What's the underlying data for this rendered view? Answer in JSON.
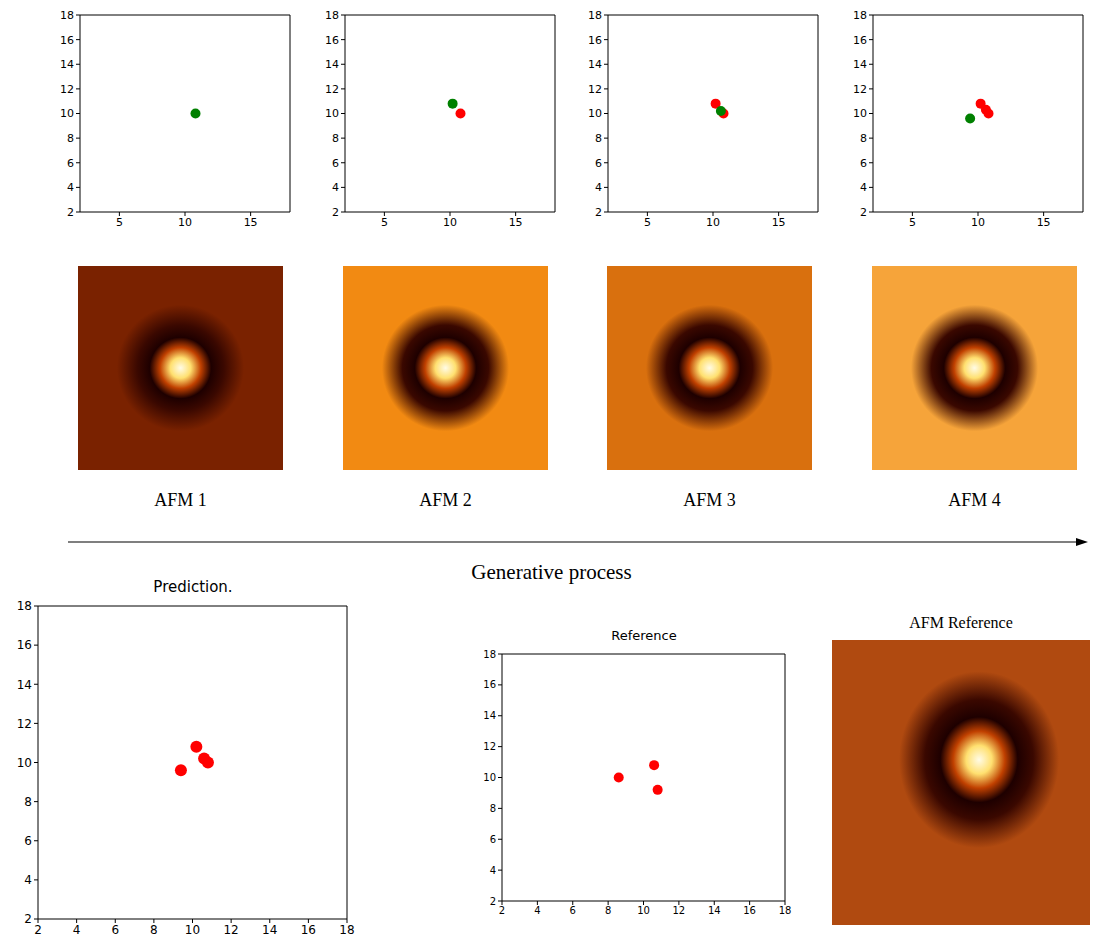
{
  "chart_data": [
    {
      "type": "scatter",
      "xlim": [
        2,
        18
      ],
      "ylim": [
        2,
        18
      ],
      "xticks": [
        5,
        10,
        15
      ],
      "yticks": [
        2,
        4,
        6,
        8,
        10,
        12,
        14,
        16,
        18
      ],
      "series": [
        {
          "color": "green",
          "x": [
            10.8
          ],
          "values": [
            10.0
          ]
        }
      ]
    },
    {
      "type": "scatter",
      "xlim": [
        2,
        18
      ],
      "ylim": [
        2,
        18
      ],
      "xticks": [
        5,
        10,
        15
      ],
      "yticks": [
        2,
        4,
        6,
        8,
        10,
        12,
        14,
        16,
        18
      ],
      "series": [
        {
          "color": "red",
          "x": [
            10.8
          ],
          "values": [
            10.0
          ]
        },
        {
          "color": "green",
          "x": [
            10.2
          ],
          "values": [
            10.8
          ]
        }
      ]
    },
    {
      "type": "scatter",
      "xlim": [
        2,
        18
      ],
      "ylim": [
        2,
        18
      ],
      "xticks": [
        5,
        10,
        15
      ],
      "yticks": [
        2,
        4,
        6,
        8,
        10,
        12,
        14,
        16,
        18
      ],
      "series": [
        {
          "color": "red",
          "x": [
            10.8,
            10.2
          ],
          "values": [
            10.0,
            10.8
          ]
        },
        {
          "color": "green",
          "x": [
            10.6
          ],
          "values": [
            10.2
          ]
        }
      ]
    },
    {
      "type": "scatter",
      "xlim": [
        2,
        18
      ],
      "ylim": [
        2,
        18
      ],
      "xticks": [
        5,
        10,
        15
      ],
      "yticks": [
        2,
        4,
        6,
        8,
        10,
        12,
        14,
        16,
        18
      ],
      "series": [
        {
          "color": "red",
          "x": [
            10.8,
            10.2,
            10.6
          ],
          "values": [
            10.0,
            10.8,
            10.3
          ]
        },
        {
          "color": "green",
          "x": [
            9.4
          ],
          "values": [
            9.6
          ]
        }
      ]
    },
    {
      "type": "scatter",
      "title": "Prediction.",
      "xlim": [
        2,
        18
      ],
      "ylim": [
        2,
        18
      ],
      "xticks": [
        2,
        4,
        6,
        8,
        10,
        12,
        14,
        16,
        18
      ],
      "yticks": [
        2,
        4,
        6,
        8,
        10,
        12,
        14,
        16,
        18
      ],
      "series": [
        {
          "color": "red",
          "x": [
            9.4,
            10.2,
            10.6,
            10.8
          ],
          "values": [
            9.6,
            10.8,
            10.2,
            10.0
          ]
        }
      ]
    },
    {
      "type": "scatter",
      "title": "Reference",
      "xlim": [
        2,
        18
      ],
      "ylim": [
        2,
        18
      ],
      "xticks": [
        2,
        4,
        6,
        8,
        10,
        12,
        14,
        16,
        18
      ],
      "yticks": [
        2,
        4,
        6,
        8,
        10,
        12,
        14,
        16,
        18
      ],
      "series": [
        {
          "color": "red",
          "x": [
            8.6,
            10.6,
            10.8
          ],
          "values": [
            10.0,
            10.8,
            9.2
          ]
        }
      ]
    }
  ],
  "images": [
    "AFM 1",
    "AFM 2",
    "AFM 3",
    "AFM 4"
  ],
  "reference_image_title": "AFM Reference",
  "process_label": "Generative process"
}
